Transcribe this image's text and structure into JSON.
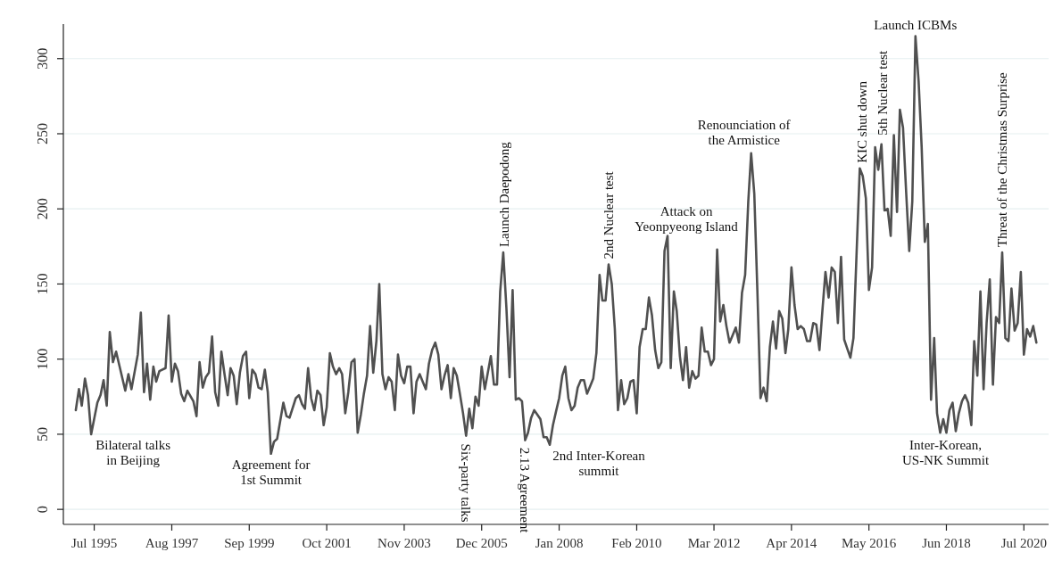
{
  "chart_data": {
    "type": "line",
    "x": [
      "1995-01",
      "1995-02",
      "1995-03",
      "1995-04",
      "1995-05",
      "1995-06",
      "1995-08",
      "1995-09",
      "1995-10",
      "1995-11",
      "1995-12",
      "1996-01",
      "1996-02",
      "1996-05",
      "1996-06",
      "1996-07",
      "1996-09",
      "1996-10",
      "1996-11",
      "1996-12",
      "1997-01",
      "1997-02",
      "1997-03",
      "1997-04",
      "1997-06",
      "1997-07",
      "1997-08",
      "1997-09",
      "1997-10",
      "1997-11",
      "1997-12",
      "1998-01",
      "1998-03",
      "1998-04",
      "1998-05",
      "1998-06",
      "1998-07",
      "1998-08",
      "1998-09",
      "1998-10",
      "1998-11",
      "1998-12",
      "1999-01",
      "1999-02",
      "1999-03",
      "1999-04",
      "1999-05",
      "1999-06",
      "1999-07",
      "1999-08",
      "1999-09",
      "1999-10",
      "1999-11",
      "1999-12",
      "2000-01",
      "2000-02",
      "2000-03",
      "2000-04",
      "2000-05",
      "2000-06",
      "2000-08",
      "2000-09",
      "2000-10",
      "2000-12",
      "2001-01",
      "2001-02",
      "2001-03",
      "2001-04",
      "2001-05",
      "2001-06",
      "2001-07",
      "2001-08",
      "2001-09",
      "2001-10",
      "2001-11",
      "2001-12",
      "2002-01",
      "2002-02",
      "2002-03",
      "2002-04",
      "2002-05",
      "2002-06",
      "2002-07",
      "2002-08",
      "2002-09",
      "2002-10",
      "2002-11",
      "2002-12",
      "2003-01",
      "2003-02",
      "2003-03",
      "2003-04",
      "2003-05",
      "2003-06",
      "2003-07",
      "2003-08",
      "2003-09",
      "2003-10",
      "2003-11",
      "2003-12",
      "2004-01",
      "2004-02",
      "2004-03",
      "2004-04",
      "2004-05",
      "2004-06",
      "2004-07",
      "2004-08",
      "2004-09",
      "2004-10",
      "2004-11",
      "2004-12",
      "2005-01",
      "2005-02",
      "2005-03",
      "2005-04",
      "2005-05",
      "2005-06",
      "2005-07",
      "2005-08",
      "2005-09",
      "2005-10",
      "2005-11",
      "2005-12",
      "2006-01",
      "2006-03",
      "2006-04",
      "2006-05",
      "2006-06",
      "2006-07",
      "2006-08",
      "2006-09",
      "2006-10",
      "2006-11",
      "2006-12",
      "2007-01",
      "2007-02",
      "2007-03",
      "2007-04",
      "2007-05",
      "2007-06",
      "2007-07",
      "2007-08",
      "2007-09",
      "2007-10",
      "2007-11",
      "2007-12",
      "2008-01",
      "2008-02",
      "2008-03",
      "2008-04",
      "2008-05",
      "2008-06",
      "2008-07",
      "2008-08",
      "2008-09",
      "2008-10",
      "2008-11",
      "2008-12",
      "2009-01",
      "2009-02",
      "2009-03",
      "2009-04",
      "2009-05",
      "2009-06",
      "2009-07",
      "2009-08",
      "2009-09",
      "2009-10",
      "2009-11",
      "2009-12",
      "2010-01",
      "2010-02",
      "2010-03",
      "2010-04",
      "2010-05",
      "2010-06",
      "2010-07",
      "2010-08",
      "2010-09",
      "2010-10",
      "2010-11",
      "2010-12",
      "2011-01",
      "2011-02",
      "2011-03",
      "2011-04",
      "2011-05",
      "2011-06",
      "2011-07",
      "2011-08",
      "2011-09",
      "2011-10",
      "2011-11",
      "2011-12",
      "2012-01",
      "2012-02",
      "2012-03",
      "2012-04",
      "2012-05",
      "2012-06",
      "2012-07",
      "2012-08",
      "2012-09",
      "2012-10",
      "2012-11",
      "2012-12",
      "2013-01",
      "2013-02",
      "2013-03",
      "2013-04",
      "2013-05",
      "2013-06",
      "2013-07",
      "2013-08",
      "2013-09",
      "2013-10",
      "2013-11",
      "2013-12",
      "2014-01",
      "2014-02",
      "2014-03",
      "2014-04",
      "2014-05",
      "2014-06",
      "2014-07",
      "2014-08",
      "2014-09",
      "2014-10",
      "2014-11",
      "2014-12",
      "2015-01",
      "2015-02",
      "2015-03",
      "2015-04",
      "2015-05",
      "2015-06",
      "2015-07",
      "2015-08",
      "2015-09",
      "2015-10",
      "2015-11",
      "2015-12",
      "2016-01",
      "2016-02",
      "2016-03",
      "2016-04",
      "2016-05",
      "2016-06",
      "2016-07",
      "2016-08",
      "2016-09",
      "2016-10",
      "2016-11",
      "2016-12",
      "2017-01",
      "2017-02",
      "2017-03",
      "2017-04",
      "2017-05",
      "2017-06",
      "2017-07",
      "2017-08",
      "2017-09",
      "2017-10",
      "2017-11",
      "2017-12",
      "2018-01",
      "2018-02",
      "2018-03",
      "2018-04",
      "2018-05",
      "2018-06",
      "2018-07",
      "2018-08",
      "2018-09",
      "2018-10",
      "2018-11",
      "2018-12",
      "2019-01",
      "2019-02",
      "2019-03",
      "2019-04",
      "2019-05",
      "2019-06",
      "2019-07",
      "2019-08",
      "2019-09",
      "2019-10",
      "2019-11",
      "2019-12",
      "2020-01",
      "2020-02",
      "2020-03",
      "2020-04",
      "2020-05",
      "2020-06",
      "2020-07",
      "2020-08",
      "2020-09",
      "2020-10",
      "2020-11"
    ],
    "series": [
      {
        "color": "#505050",
        "values": [
          66,
          80,
          69,
          87,
          76,
          50,
          71,
          76,
          86,
          69,
          118,
          98,
          105,
          79,
          90,
          80,
          103,
          131,
          78,
          97,
          73,
          95,
          85,
          92,
          94,
          129,
          85,
          97,
          92,
          77,
          72,
          79,
          72,
          62,
          98,
          81,
          88,
          91,
          115,
          78,
          69,
          105,
          90,
          76,
          94,
          89,
          70,
          91,
          102,
          105,
          74,
          93,
          90,
          81,
          80,
          93,
          78,
          37,
          45,
          47,
          71,
          62,
          61,
          74,
          76,
          70,
          67,
          94,
          74,
          66,
          79,
          76,
          56,
          68,
          104,
          95,
          90,
          94,
          90,
          64,
          78,
          98,
          100,
          51,
          63,
          77,
          89,
          122,
          91,
          112,
          150,
          90,
          80,
          88,
          85,
          66,
          103,
          89,
          84,
          95,
          95,
          64,
          85,
          90,
          85,
          80,
          97,
          106,
          111,
          103,
          80,
          89,
          96,
          74,
          94,
          89,
          77,
          64,
          49,
          67,
          54,
          75,
          69,
          95,
          80,
          102,
          83,
          83,
          145,
          171,
          134,
          88,
          146,
          73,
          74,
          72,
          46,
          51,
          61,
          66,
          63,
          60,
          48,
          48,
          43,
          56,
          65,
          74,
          89,
          95,
          74,
          66,
          69,
          81,
          86,
          86,
          77,
          82,
          87,
          104,
          156,
          139,
          139,
          163,
          150,
          120,
          66,
          86,
          70,
          74,
          85,
          86,
          64,
          108,
          120,
          120,
          141,
          129,
          106,
          94,
          98,
          172,
          182,
          94,
          145,
          132,
          102,
          86,
          108,
          81,
          92,
          87,
          89,
          121,
          105,
          105,
          96,
          100,
          173,
          125,
          136,
          122,
          111,
          116,
          121,
          111,
          144,
          156,
          205,
          237,
          210,
          146,
          74,
          81,
          72,
          108,
          125,
          107,
          132,
          127,
          104,
          120,
          161,
          136,
          120,
          122,
          120,
          112,
          112,
          124,
          123,
          106,
          134,
          158,
          141,
          161,
          158,
          124,
          168,
          113,
          107,
          101,
          114,
          171,
          227,
          222,
          207,
          146,
          161,
          241,
          226,
          243,
          199,
          200,
          182,
          249,
          198,
          266,
          254,
          212,
          172,
          205,
          315,
          285,
          241,
          178,
          190,
          73,
          114,
          64,
          51,
          60,
          51,
          66,
          71,
          52,
          64,
          72,
          76,
          71,
          56,
          112,
          89,
          145,
          80,
          124,
          153,
          83,
          128,
          124,
          171,
          114,
          112,
          147,
          119,
          124,
          158,
          103,
          120,
          115,
          122,
          111
        ]
      }
    ],
    "xlim": [
      "1994-09",
      "2021-03"
    ],
    "xticks": [
      {
        "value": "1995-07",
        "label": "Jul 1995"
      },
      {
        "value": "1997-08",
        "label": "Aug 1997"
      },
      {
        "value": "1999-09",
        "label": "Sep 1999"
      },
      {
        "value": "2001-10",
        "label": "Oct 2001"
      },
      {
        "value": "2003-11",
        "label": "Nov 2003"
      },
      {
        "value": "2005-12",
        "label": "Dec 2005"
      },
      {
        "value": "2008-01",
        "label": "Jan 2008"
      },
      {
        "value": "2010-02",
        "label": "Feb 2010"
      },
      {
        "value": "2012-03",
        "label": "Mar 2012"
      },
      {
        "value": "2014-04",
        "label": "Apr 2014"
      },
      {
        "value": "2016-05",
        "label": "May 2016"
      },
      {
        "value": "2018-06",
        "label": "Jun 2018"
      },
      {
        "value": "2020-07",
        "label": "Jul 2020"
      }
    ],
    "ylim": [
      -10,
      323
    ],
    "yticks": [
      0,
      50,
      100,
      150,
      200,
      250,
      300
    ],
    "grid": "y",
    "annotations": [
      {
        "text": "Bilateral talks\nin Beijing",
        "x": "1995-06",
        "y": 50
      },
      {
        "text": "Agreement for\n1st Summit",
        "x": "2000-04",
        "y": 37
      },
      {
        "text": "Six-party talks",
        "x": "2005-07",
        "y": 49
      },
      {
        "text": "Launch Daepodong",
        "x": "2006-07",
        "y": 171
      },
      {
        "text": "2.13 Agreement",
        "x": "2007-02",
        "y": 46
      },
      {
        "text": "2nd Inter-Korean\nsummit",
        "x": "2007-10",
        "y": 43
      },
      {
        "text": "2nd Nuclear test",
        "x": "2009-05",
        "y": 163
      },
      {
        "text": "Attack on\nYeonpyeong Island",
        "x": "2010-12",
        "y": 182
      },
      {
        "text": "Renounciation of\nthe Armistice",
        "x": "2013-03",
        "y": 237
      },
      {
        "text": "KIC shut down",
        "x": "2016-02",
        "y": 227
      },
      {
        "text": "5th Nuclear test",
        "x": "2016-09",
        "y": 243
      },
      {
        "text": "Launch ICBMs",
        "x": "2017-08",
        "y": 315
      },
      {
        "text": "Inter-Korean,\nUS-NK Summit",
        "x": "2018-04",
        "y": 51
      },
      {
        "text": "Threat of the Christmas Surprise",
        "x": "2019-12",
        "y": 171
      }
    ]
  }
}
